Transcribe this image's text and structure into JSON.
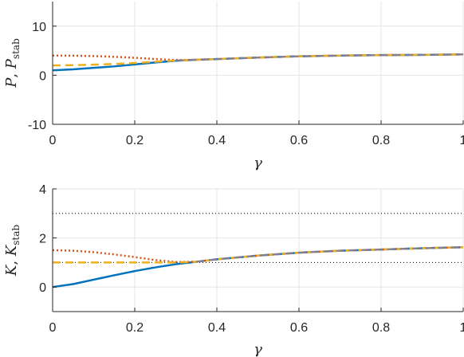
{
  "chart_data": [
    {
      "type": "line",
      "xlabel": "γ",
      "ylabel_main": "P",
      "ylabel_second": "P",
      "ylabel_second_sub": "stab",
      "xlim": [
        0,
        1
      ],
      "ylim": [
        -10,
        15
      ],
      "xticks": [
        0,
        0.2,
        0.4,
        0.6,
        0.8,
        1
      ],
      "xtick_labels": [
        "0",
        "0.2",
        "0.4",
        "0.6",
        "0.8",
        "1"
      ],
      "yticks": [
        -10,
        0,
        10
      ],
      "ytick_labels": [
        "-10",
        "0",
        "10"
      ],
      "grid": true,
      "series": [
        {
          "color": "#0072bd",
          "dash": "solid",
          "x": [
            0,
            0.05,
            0.1,
            0.15,
            0.2,
            0.25,
            0.3,
            0.35,
            0.4,
            0.5,
            0.6,
            0.7,
            0.8,
            0.9,
            1.0
          ],
          "y": [
            1.0,
            1.2,
            1.5,
            1.8,
            2.2,
            2.6,
            2.95,
            3.15,
            3.3,
            3.6,
            3.85,
            4.0,
            4.1,
            4.15,
            4.25
          ]
        },
        {
          "color": "#d95319",
          "dash": "dotted",
          "x": [
            0,
            0.05,
            0.1,
            0.15,
            0.2,
            0.25,
            0.3,
            0.35,
            0.4,
            0.5,
            0.6,
            0.7,
            0.8,
            0.9,
            1.0
          ],
          "y": [
            4.0,
            3.98,
            3.9,
            3.75,
            3.55,
            3.3,
            3.1,
            3.15,
            3.3,
            3.6,
            3.85,
            4.0,
            4.1,
            4.15,
            4.25
          ]
        },
        {
          "color": "#edb120",
          "dash": "dashed",
          "x": [
            0,
            0.05,
            0.1,
            0.15,
            0.2,
            0.25,
            0.3,
            0.35,
            0.4,
            0.5,
            0.6,
            0.7,
            0.8,
            0.9,
            1.0
          ],
          "y": [
            2.0,
            2.05,
            2.15,
            2.3,
            2.5,
            2.75,
            3.0,
            3.15,
            3.3,
            3.6,
            3.85,
            4.0,
            4.1,
            4.15,
            4.25
          ]
        },
        {
          "color": "#7e7e9a",
          "dash": "dashed",
          "x": [
            0.3,
            0.4,
            0.5,
            0.6,
            0.7,
            0.8,
            0.9,
            1.0
          ],
          "y": [
            3.0,
            3.3,
            3.6,
            3.85,
            4.0,
            4.1,
            4.15,
            4.25
          ]
        }
      ]
    },
    {
      "type": "line",
      "xlabel": "γ",
      "ylabel_main": "K",
      "ylabel_second": "K",
      "ylabel_second_sub": "stab",
      "xlim": [
        0,
        1
      ],
      "ylim": [
        -1,
        4
      ],
      "xticks": [
        0,
        0.2,
        0.4,
        0.6,
        0.8,
        1
      ],
      "xtick_labels": [
        "0",
        "0.2",
        "0.4",
        "0.6",
        "0.8",
        "1"
      ],
      "yticks": [
        0,
        2,
        4
      ],
      "ytick_labels": [
        "0",
        "2",
        "4"
      ],
      "grid": true,
      "reference_lines": [
        1,
        3
      ],
      "series": [
        {
          "color": "#0072bd",
          "dash": "solid",
          "x": [
            0,
            0.05,
            0.1,
            0.15,
            0.2,
            0.25,
            0.3,
            0.35,
            0.4,
            0.5,
            0.6,
            0.7,
            0.8,
            0.9,
            1.0
          ],
          "y": [
            0.0,
            0.12,
            0.3,
            0.48,
            0.65,
            0.8,
            0.93,
            1.03,
            1.13,
            1.28,
            1.4,
            1.48,
            1.53,
            1.58,
            1.62
          ]
        },
        {
          "color": "#d95319",
          "dash": "dotted",
          "x": [
            0,
            0.05,
            0.1,
            0.15,
            0.2,
            0.25,
            0.3,
            0.35,
            0.4,
            0.5,
            0.6,
            0.7,
            0.8,
            0.9,
            1.0
          ],
          "y": [
            1.5,
            1.48,
            1.42,
            1.33,
            1.22,
            1.1,
            1.02,
            1.03,
            1.13,
            1.28,
            1.4,
            1.48,
            1.53,
            1.58,
            1.62
          ]
        },
        {
          "color": "#edb120",
          "dash": "dashed",
          "x": [
            0,
            0.05,
            0.1,
            0.15,
            0.2,
            0.25,
            0.3,
            0.35,
            0.4,
            0.5,
            0.6,
            0.7,
            0.8,
            0.9,
            1.0
          ],
          "y": [
            1.0,
            1.0,
            1.0,
            1.0,
            1.0,
            1.0,
            1.0,
            1.03,
            1.13,
            1.28,
            1.4,
            1.48,
            1.53,
            1.58,
            1.62
          ]
        },
        {
          "color": "#7e7e9a",
          "dash": "dashed",
          "x": [
            0.35,
            0.4,
            0.5,
            0.6,
            0.7,
            0.8,
            0.9,
            1.0
          ],
          "y": [
            1.03,
            1.13,
            1.28,
            1.4,
            1.48,
            1.53,
            1.58,
            1.62
          ]
        }
      ]
    }
  ]
}
